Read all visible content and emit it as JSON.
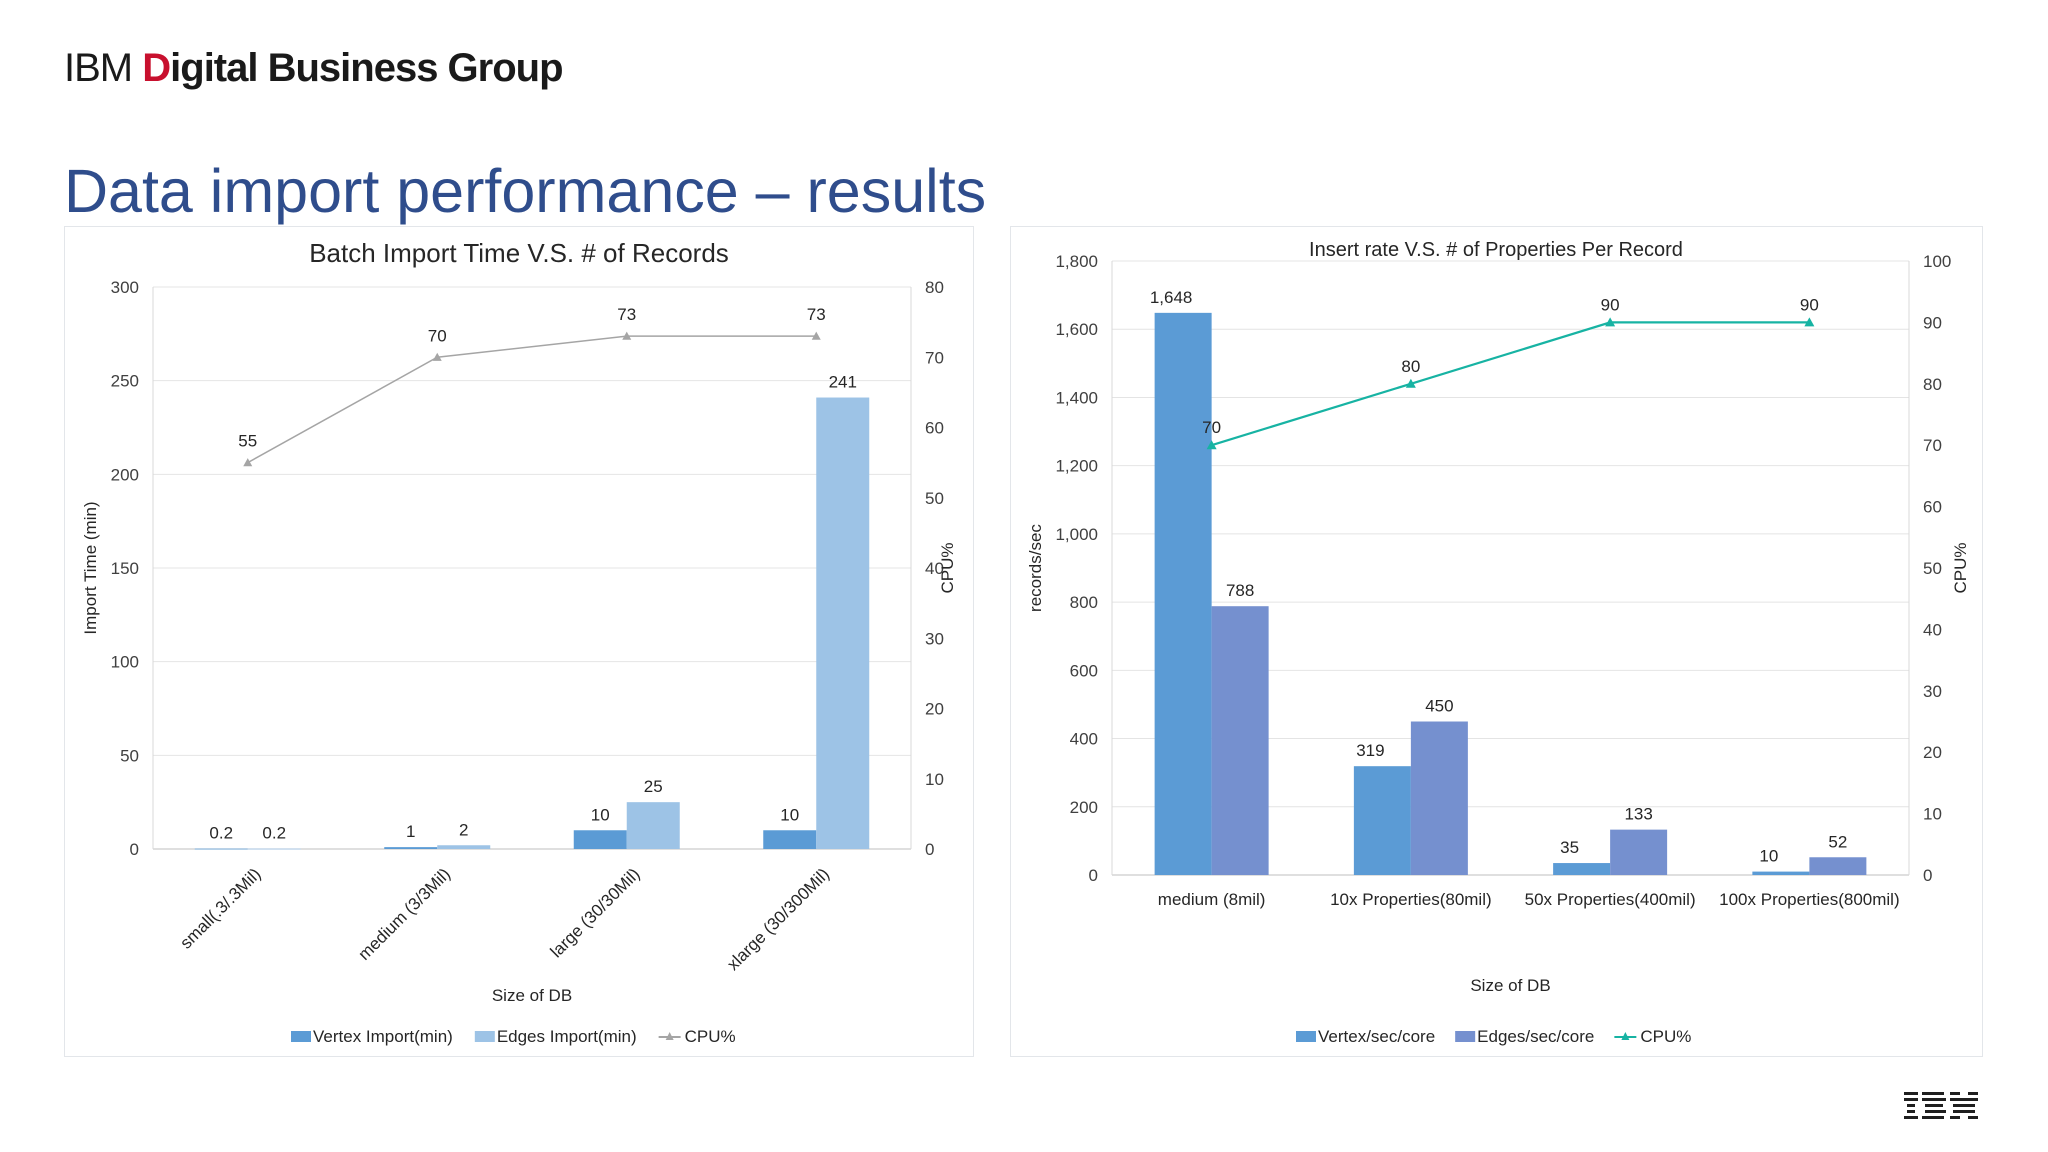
{
  "header": {
    "brand_ibm": "IBM",
    "brand_d": "D",
    "brand_rest": "igital Business Group",
    "slide_title": "Data import performance – results"
  },
  "colors": {
    "title": "#2f4d8c",
    "brand_accent": "#c8102e",
    "vertex_left": "#5b9bd5",
    "edges_left": "#9dc3e6",
    "cpu_left": "#a5a5a5",
    "vertex_right": "#5b9bd5",
    "edges_right": "#7590cf",
    "cpu_right": "#17b3a3"
  },
  "chart_data": [
    {
      "type": "bar",
      "title": "Batch Import Time V.S. # of Records",
      "xlabel": "Size of DB",
      "ylabel": "Import Time (min)",
      "y2label": "CPU%",
      "ylim": [
        0,
        300
      ],
      "y2lim": [
        0,
        80
      ],
      "yticks": [
        "0",
        "50",
        "100",
        "150",
        "200",
        "250",
        "300"
      ],
      "y2ticks": [
        "0",
        "10",
        "20",
        "30",
        "40",
        "50",
        "60",
        "70",
        "80"
      ],
      "categories": [
        "small(.3/.3Mil)",
        "medium (3/3Mil)",
        "large (30/30Mil)",
        "xlarge (30/300Mil)"
      ],
      "series": [
        {
          "name": "Vertex Import(min)",
          "kind": "bar",
          "axis": "left",
          "values": [
            0.2,
            1,
            10,
            10
          ],
          "labels": [
            "0.2",
            "1",
            "10",
            "10"
          ]
        },
        {
          "name": "Edges Import(min)",
          "kind": "bar",
          "axis": "left",
          "values": [
            0.2,
            2,
            25,
            241
          ],
          "labels": [
            "0.2",
            "2",
            "25",
            "241"
          ]
        },
        {
          "name": "CPU%",
          "kind": "line",
          "axis": "right",
          "values": [
            55,
            70,
            73,
            73
          ],
          "labels": [
            "55",
            "70",
            "73",
            "73"
          ]
        }
      ],
      "grid": true,
      "legend": "bottom"
    },
    {
      "type": "bar",
      "title": "Insert rate V.S. # of Properties Per Record",
      "xlabel": "Size of DB",
      "ylabel": "records/sec",
      "y2label": "CPU%",
      "ylim": [
        0,
        1800
      ],
      "y2lim": [
        0,
        100
      ],
      "yticks": [
        "0",
        "200",
        "400",
        "600",
        "800",
        "1,000",
        "1,200",
        "1,400",
        "1,600",
        "1,800"
      ],
      "y2ticks": [
        "0",
        "10",
        "20",
        "30",
        "40",
        "50",
        "60",
        "70",
        "80",
        "90",
        "100"
      ],
      "categories": [
        "medium (8mil)",
        "10x Properties(80mil)",
        "50x Properties(400mil)",
        "100x Properties(800mil)"
      ],
      "series": [
        {
          "name": "Vertex/sec/core",
          "kind": "bar",
          "axis": "left",
          "values": [
            1648,
            319,
            35,
            10
          ],
          "labels": [
            "1,648",
            "319",
            "35",
            "10"
          ]
        },
        {
          "name": "Edges/sec/core",
          "kind": "bar",
          "axis": "left",
          "values": [
            788,
            450,
            133,
            52
          ],
          "labels": [
            "788",
            "450",
            "133",
            "52"
          ]
        },
        {
          "name": "CPU%",
          "kind": "line",
          "axis": "right",
          "values": [
            70,
            80,
            90,
            90
          ],
          "labels": [
            "70",
            "80",
            "90",
            "90"
          ]
        }
      ],
      "grid": true,
      "legend": "bottom"
    }
  ]
}
